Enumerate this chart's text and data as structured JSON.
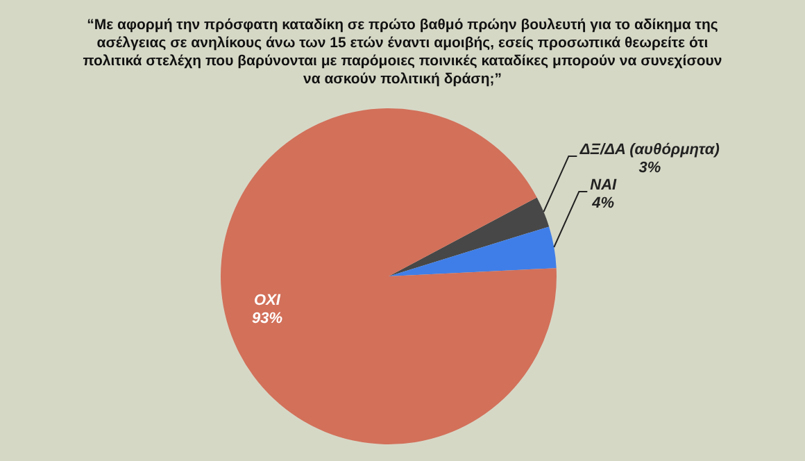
{
  "chart_data": {
    "type": "pie",
    "title": "“Με αφορμή την πρόσφατη καταδίκη σε πρώτο βαθμό πρώην βουλευτή για το αδίκημα της ασέλγειας σε ανηλίκους άνω των 15 ετών έναντι αμοιβής, εσείς προσωπικά θεωρείτε ότι πολιτικά στελέχη που βαρύνονται με παρόμοιες ποινικές καταδίκες μπορούν να συνεχίσουν να ασκούν πολιτική δράση;”",
    "categories": [
      "ΔΞ/ΔΑ (αυθόρμητα)",
      "ΝΑΙ",
      "ΟΧΙ"
    ],
    "values": [
      3,
      4,
      93
    ],
    "colors": [
      "#474747",
      "#3f7ee8",
      "#d2705a"
    ],
    "value_labels": [
      "3%",
      "4%",
      "93%"
    ],
    "legend": false
  }
}
